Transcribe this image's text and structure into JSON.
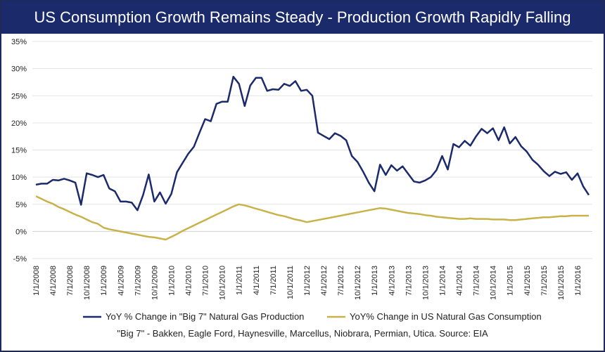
{
  "chart_data": {
    "type": "line",
    "title": "US Consumption Growth Remains Steady - Production Growth Rapidly Falling",
    "y_ticks": [
      "35%",
      "30%",
      "25%",
      "20%",
      "15%",
      "10%",
      "5%",
      "0%",
      "-5%"
    ],
    "y_tick_values": [
      35,
      30,
      25,
      20,
      15,
      10,
      5,
      0,
      -5
    ],
    "ylim": [
      -5,
      35
    ],
    "x_tick_labels": [
      "1/1/2008",
      "4/1/2008",
      "7/1/2008",
      "10/1/2008",
      "1/1/2009",
      "4/1/2009",
      "7/1/2009",
      "10/1/2009",
      "1/1/2010",
      "4/1/2010",
      "7/1/2010",
      "10/1/2010",
      "1/1/2011",
      "4/1/2011",
      "7/1/2011",
      "10/1/2011",
      "1/1/2012",
      "4/1/2012",
      "7/1/2012",
      "10/1/2012",
      "1/1/2013",
      "4/1/2013",
      "7/1/2013",
      "10/1/2013",
      "1/1/2014",
      "4/1/2014",
      "7/1/2014",
      "10/1/2014",
      "1/1/2015",
      "4/1/2015",
      "7/1/2015",
      "10/1/2015",
      "1/1/2016"
    ],
    "x_start": "2008-01",
    "x_end": "2016-05",
    "series": [
      {
        "name": "YoY % Change in \"Big 7\" Natural Gas Production",
        "color": "#1b2a6b",
        "values": [
          8.6,
          8.8,
          8.8,
          9.5,
          9.4,
          9.7,
          9.4,
          9.0,
          4.9,
          10.7,
          10.4,
          10.0,
          10.4,
          7.9,
          7.4,
          5.5,
          5.5,
          5.3,
          3.9,
          6.7,
          10.5,
          5.5,
          7.2,
          5.1,
          6.9,
          10.9,
          12.6,
          14.3,
          15.6,
          18.2,
          20.7,
          20.3,
          23.5,
          23.9,
          23.9,
          28.5,
          27.2,
          23.1,
          26.9,
          28.3,
          28.3,
          25.9,
          26.2,
          26.1,
          27.2,
          26.8,
          27.7,
          25.9,
          26.1,
          25.0,
          18.2,
          17.6,
          17.0,
          18.1,
          17.6,
          16.8,
          13.9,
          12.8,
          11.0,
          9.0,
          7.4,
          12.3,
          10.4,
          12.2,
          11.2,
          12.0,
          10.6,
          9.2,
          9.0,
          9.4,
          10.0,
          11.3,
          13.9,
          11.4,
          16.1,
          15.5,
          16.7,
          15.8,
          17.5,
          18.9,
          18.1,
          19.0,
          16.8,
          19.2,
          16.2,
          17.4,
          15.7,
          14.7,
          13.2,
          12.3,
          11.1,
          10.2,
          11.0,
          10.6,
          10.9,
          9.5,
          10.7,
          8.3,
          6.7
        ]
      },
      {
        "name": "YoY% Change in US Natural Gas Consumption",
        "color": "#c9b24a",
        "values": [
          6.5,
          6.0,
          5.5,
          5.1,
          4.5,
          4.1,
          3.6,
          3.1,
          2.7,
          2.2,
          1.7,
          1.4,
          0.7,
          0.4,
          0.2,
          0.0,
          -0.2,
          -0.4,
          -0.6,
          -0.8,
          -1.0,
          -1.1,
          -1.3,
          -1.5,
          -1.0,
          -0.5,
          0.1,
          0.6,
          1.1,
          1.6,
          2.1,
          2.6,
          3.1,
          3.6,
          4.1,
          4.6,
          5.0,
          4.8,
          4.5,
          4.2,
          3.9,
          3.6,
          3.3,
          3.0,
          2.8,
          2.5,
          2.2,
          2.0,
          1.7,
          1.9,
          2.1,
          2.3,
          2.5,
          2.7,
          2.9,
          3.1,
          3.3,
          3.5,
          3.7,
          3.9,
          4.1,
          4.3,
          4.2,
          4.0,
          3.8,
          3.6,
          3.4,
          3.3,
          3.2,
          3.0,
          2.9,
          2.7,
          2.6,
          2.5,
          2.4,
          2.3,
          2.3,
          2.4,
          2.3,
          2.3,
          2.3,
          2.2,
          2.2,
          2.2,
          2.1,
          2.1,
          2.2,
          2.3,
          2.4,
          2.5,
          2.6,
          2.6,
          2.7,
          2.8,
          2.8,
          2.9,
          2.9,
          2.9,
          2.9
        ]
      }
    ],
    "grid": true,
    "legend_position": "bottom",
    "note": "\"Big 7\" - Bakken, Eagle Ford, Haynesville, Marcellus, Niobrara, Permian, Utica. Source: EIA"
  }
}
